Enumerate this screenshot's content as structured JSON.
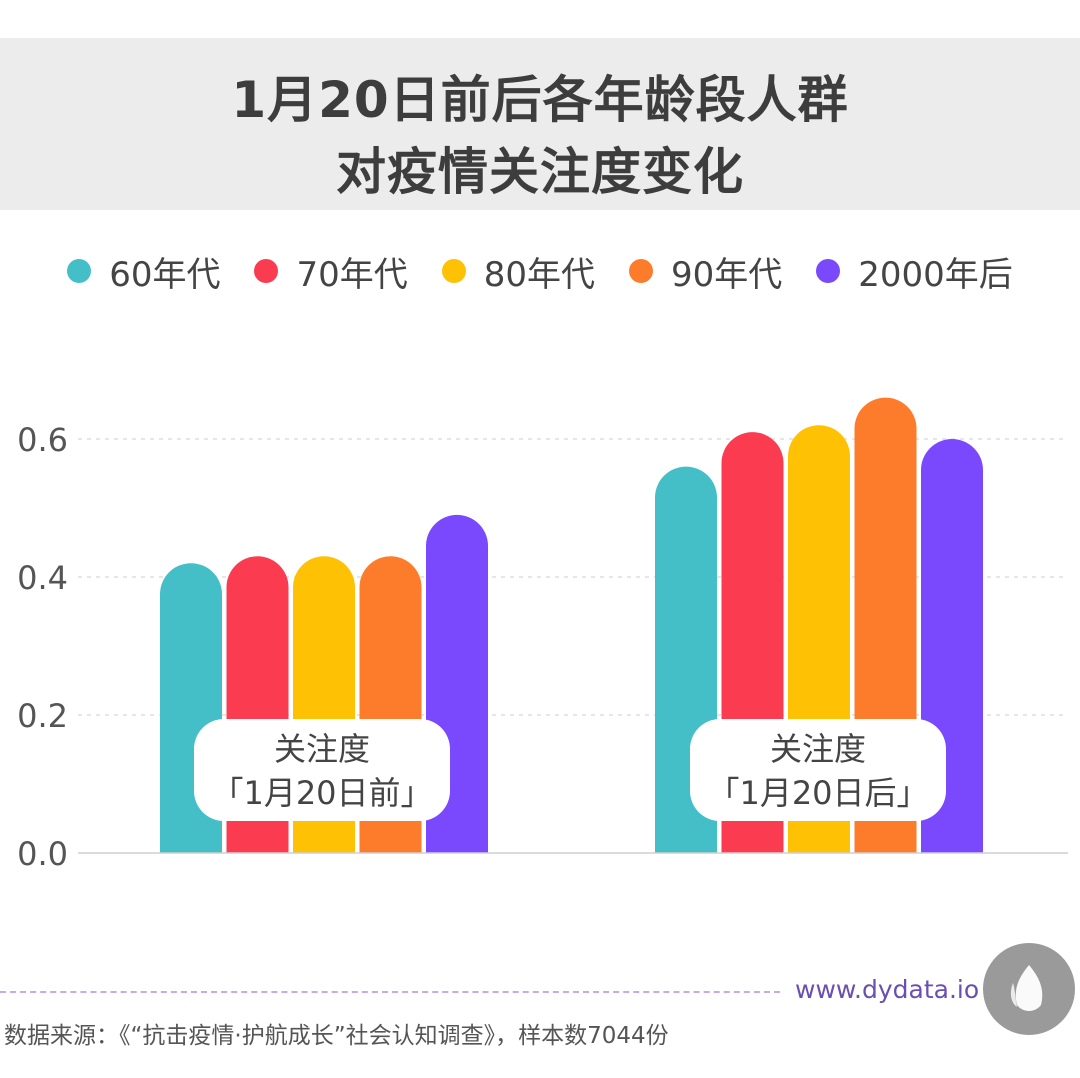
{
  "title": {
    "line1": "1月20日前后各年龄段人群",
    "line2": "对疫情关注度变化"
  },
  "legend": [
    {
      "label": "60年代",
      "color": "#44bfc7"
    },
    {
      "label": "70年代",
      "color": "#fb3b50"
    },
    {
      "label": "80年代",
      "color": "#fec104"
    },
    {
      "label": "90年代",
      "color": "#fd7c2b"
    },
    {
      "label": "2000年后",
      "color": "#7a49fd"
    }
  ],
  "chart_data": {
    "type": "bar",
    "categories": [
      "关注度\n「1月20日前」",
      "关注度\n「1月20日后」"
    ],
    "series": [
      {
        "name": "60年代",
        "color": "#44bfc7",
        "values": [
          0.42,
          0.56
        ]
      },
      {
        "name": "70年代",
        "color": "#fb3b50",
        "values": [
          0.43,
          0.61
        ]
      },
      {
        "name": "80年代",
        "color": "#fec104",
        "values": [
          0.43,
          0.62
        ]
      },
      {
        "name": "90年代",
        "color": "#fd7c2b",
        "values": [
          0.43,
          0.66
        ]
      },
      {
        "name": "2000年后",
        "color": "#7a49fd",
        "values": [
          0.49,
          0.6
        ]
      }
    ],
    "yticks": [
      "0.0",
      "0.2",
      "0.4",
      "0.6"
    ],
    "ylim": [
      0,
      0.6
    ],
    "grid": true,
    "legend_position": "top"
  },
  "footer": {
    "site": "www.dydata.io",
    "source": "数据来源：《“抗击疫情·护航成长”社会认知调查》，样本数7044份"
  }
}
